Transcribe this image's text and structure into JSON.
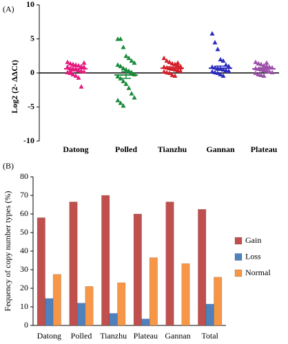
{
  "chart_data": [
    {
      "type": "scatter",
      "panel": "(A)",
      "ylabel": "Log2 (2- ΔΔCt)",
      "categories": [
        "Datong",
        "Polled",
        "Tianzhu",
        "Gannan",
        "Plateau"
      ],
      "colors": [
        "#e6197f",
        "#1a8a3a",
        "#d4202a",
        "#2b2bbf",
        "#9b4fa8"
      ],
      "values": [
        [
          1.6,
          1.4,
          1.3,
          1.2,
          1.1,
          1.0,
          0.9,
          0.8,
          0.7,
          0.6,
          0.5,
          0.4,
          0.3,
          0.2,
          0.1,
          0.0,
          -0.2,
          -0.4,
          -0.7,
          -2.0,
          1.5,
          0.9,
          0.3
        ],
        [
          5.0,
          5.0,
          3.8,
          2.5,
          2.2,
          1.8,
          1.5,
          1.2,
          1.0,
          0.7,
          0.5,
          0.3,
          0.1,
          -0.2,
          -0.5,
          -0.8,
          -1.2,
          -1.6,
          -2.2,
          -3.0,
          -3.6,
          -4.0,
          -4.4,
          -4.8
        ],
        [
          2.2,
          1.8,
          1.6,
          1.4,
          1.3,
          1.1,
          1.0,
          0.9,
          0.8,
          0.7,
          0.6,
          0.5,
          0.4,
          0.3,
          0.2,
          0.1,
          0.0,
          -0.3,
          -0.4,
          1.5,
          0.8
        ],
        [
          5.8,
          4.5,
          3.5,
          2.0,
          1.8,
          1.2,
          1.0,
          0.9,
          0.8,
          0.7,
          0.6,
          0.5,
          0.4,
          0.3,
          0.2,
          0.1,
          0.0,
          -0.2,
          -0.4
        ],
        [
          1.6,
          1.4,
          1.3,
          1.1,
          1.0,
          0.9,
          0.8,
          0.7,
          0.6,
          0.5,
          0.4,
          0.3,
          0.2,
          0.1,
          0.0,
          -0.2,
          -0.3,
          -0.4,
          1.5
        ]
      ],
      "means": [
        0.6,
        -0.3,
        0.7,
        0.7,
        0.6
      ],
      "errors": [
        0.3,
        0.5,
        0.2,
        0.3,
        0.2
      ],
      "ylim": [
        -10,
        10
      ],
      "yticks": [
        -10,
        -5,
        0,
        5,
        10
      ]
    },
    {
      "type": "bar",
      "panel": "(B)",
      "ylabel": "Fequency of copy number types (%)",
      "categories": [
        "Datong",
        "Polled",
        "Tianzhu",
        "Plateau",
        "Gannan",
        "Total"
      ],
      "series": [
        {
          "name": "Gain",
          "color": "#c0504d",
          "values": [
            58,
            66.5,
            70,
            60,
            66.5,
            62.5
          ]
        },
        {
          "name": "Loss",
          "color": "#4f81bd",
          "values": [
            14.5,
            12,
            6.5,
            3.5,
            0,
            11.5
          ]
        },
        {
          "name": "Normal",
          "color": "#f79646",
          "values": [
            27.5,
            21,
            23,
            36.5,
            33.3,
            26
          ]
        }
      ],
      "ylim": [
        0,
        80
      ],
      "yticks": [
        0,
        10,
        20,
        30,
        40,
        50,
        60,
        70,
        80
      ],
      "legend": "right"
    }
  ]
}
